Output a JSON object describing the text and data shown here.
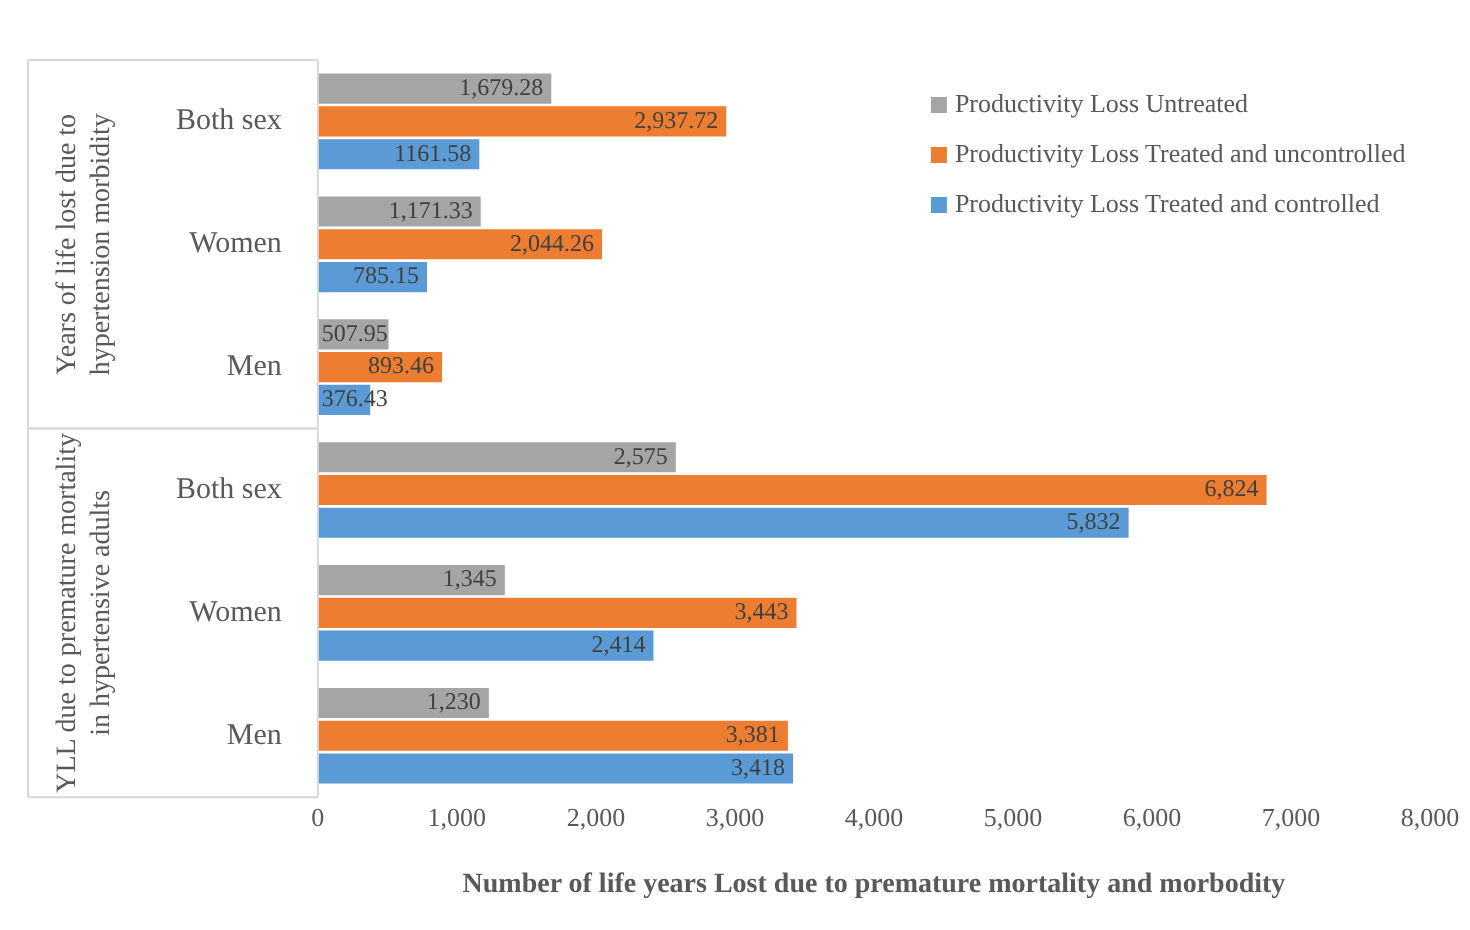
{
  "chart_data": {
    "type": "bar",
    "orientation": "horizontal",
    "xlabel": "Number of life years Lost due to premature mortality and morbodity",
    "categories": [
      "Both sex",
      "Women",
      "Men",
      "Both sex",
      "Women",
      "Men"
    ],
    "annotations": [
      "Years of life lost due to hypertension morbidity",
      "YLL due to premature mortality in hypertensive adults"
    ],
    "series": [
      {
        "name": "Productivity Loss Untreated",
        "color": "#a5a5a5",
        "values": [
          1679.28,
          1171.33,
          507.95,
          2575,
          1345,
          1230
        ],
        "value_labels": [
          "1,679.28",
          "1,171.33",
          "507.95",
          "2,575",
          "1,345",
          "1,230"
        ]
      },
      {
        "name": "Productivity Loss Treated and uncontrolled",
        "color": "#ed7d31",
        "values": [
          2937.72,
          2044.26,
          893.46,
          6824,
          3443,
          3381
        ],
        "value_labels": [
          "2,937.72",
          "2,044.26",
          "893.46",
          "6,824",
          "3,443",
          "3,381"
        ]
      },
      {
        "name": "Productivity Loss Treated and controlled",
        "color": "#5b9bd5",
        "values": [
          1161.58,
          785.15,
          376.43,
          5832,
          2414,
          3418
        ],
        "value_labels": [
          "1161.58",
          "785.15",
          "376.43",
          "5,832",
          "2,414",
          "3,418"
        ]
      }
    ],
    "xlim": [
      0,
      8000
    ],
    "xticks": [
      {
        "value": 0,
        "label": "0"
      },
      {
        "value": 1000,
        "label": "1,000"
      },
      {
        "value": 2000,
        "label": "2,000"
      },
      {
        "value": 3000,
        "label": "3,000"
      },
      {
        "value": 4000,
        "label": "4,000"
      },
      {
        "value": 5000,
        "label": "5,000"
      },
      {
        "value": 6000,
        "label": "6,000"
      },
      {
        "value": 7000,
        "label": "7,000"
      },
      {
        "value": 8000,
        "label": "8,000"
      }
    ],
    "grid": false,
    "legend": "top right",
    "data_labels": true
  }
}
